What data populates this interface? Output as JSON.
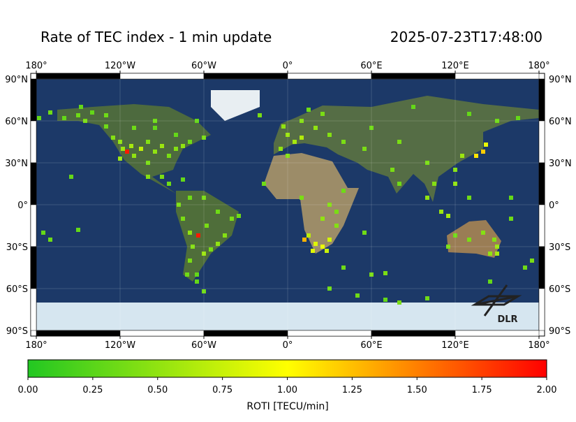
{
  "title": "Rate of TEC index - 1 min update",
  "timestamp": "2025-07-23T17:48:00",
  "logo": "DLR",
  "map": {
    "xlim": [
      -180,
      180
    ],
    "ylim": [
      -90,
      90
    ],
    "xticks": [
      {
        "value": -180,
        "label": "180°"
      },
      {
        "value": -120,
        "label": "120°W"
      },
      {
        "value": -60,
        "label": "60°W"
      },
      {
        "value": 0,
        "label": "0°"
      },
      {
        "value": 60,
        "label": "60°E"
      },
      {
        "value": 120,
        "label": "120°E"
      },
      {
        "value": 180,
        "label": "180°"
      }
    ],
    "yticks": [
      {
        "value": 90,
        "label": "90°N"
      },
      {
        "value": 60,
        "label": "60°N"
      },
      {
        "value": 30,
        "label": "30°N"
      },
      {
        "value": 0,
        "label": "0°"
      },
      {
        "value": -30,
        "label": "30°S"
      },
      {
        "value": -60,
        "label": "60°S"
      },
      {
        "value": -90,
        "label": "90°S"
      }
    ]
  },
  "points": {
    "lon": [
      -160,
      -150,
      -145,
      -140,
      -130,
      -125,
      -120,
      -118,
      -115,
      -112,
      -110,
      -105,
      -100,
      -95,
      -90,
      -85,
      -80,
      -75,
      -70,
      -120,
      -100,
      -95,
      -110,
      -80,
      -65,
      -90,
      -100,
      -85,
      -75,
      -155,
      -178,
      -170,
      -60,
      -130,
      -148,
      -95,
      -78,
      -70,
      -60,
      -50,
      -40,
      -45,
      -50,
      -55,
      -60,
      -64,
      -70,
      -68,
      -70,
      -72,
      -65,
      -58,
      -35,
      -75,
      -5,
      0,
      5,
      10,
      -3,
      10,
      20,
      25,
      15,
      -20,
      30,
      0,
      -17,
      10,
      30,
      35,
      25,
      15,
      20,
      25,
      30,
      18,
      28,
      12,
      40,
      55,
      35,
      40,
      55,
      60,
      80,
      75,
      80,
      100,
      105,
      100,
      110,
      115,
      120,
      120,
      125,
      135,
      140,
      142,
      150,
      165,
      90,
      130,
      115,
      120,
      130,
      140,
      145,
      150,
      148,
      150,
      175,
      170,
      160,
      -175,
      -170,
      -150,
      160,
      130,
      60,
      40,
      70,
      50,
      70,
      100,
      80,
      -60,
      -65,
      145,
      30
    ],
    "lat": [
      62,
      64,
      60,
      66,
      56,
      48,
      45,
      40,
      38,
      42,
      35,
      40,
      45,
      38,
      42,
      35,
      40,
      42,
      45,
      33,
      30,
      55,
      55,
      50,
      60,
      20,
      20,
      15,
      18,
      20,
      62,
      66,
      48,
      64,
      70,
      60,
      0,
      5,
      5,
      -5,
      -10,
      -22,
      -28,
      -32,
      -35,
      -22,
      -20,
      -30,
      -40,
      -50,
      -50,
      -15,
      -8,
      -10,
      40,
      50,
      45,
      48,
      56,
      60,
      55,
      65,
      68,
      64,
      50,
      35,
      15,
      5,
      0,
      -5,
      -10,
      -22,
      -28,
      -30,
      -25,
      -33,
      -33,
      -25,
      10,
      -20,
      -15,
      45,
      40,
      55,
      45,
      25,
      15,
      30,
      15,
      5,
      -5,
      -8,
      15,
      25,
      35,
      35,
      38,
      43,
      60,
      62,
      70,
      65,
      -30,
      -22,
      -25,
      -20,
      -35,
      -30,
      -25,
      -35,
      -40,
      -45,
      -10,
      -20,
      -25,
      -18,
      5,
      5,
      -50,
      -45,
      -49,
      -65,
      -68,
      -67,
      -70,
      -62,
      -55,
      -55,
      -60
    ],
    "roti": [
      0.3,
      0.35,
      0.4,
      0.3,
      0.35,
      0.45,
      0.5,
      0.55,
      1.9,
      0.6,
      0.5,
      0.7,
      0.45,
      0.5,
      0.55,
      0.4,
      0.45,
      0.5,
      0.35,
      0.55,
      0.4,
      0.3,
      0.35,
      0.3,
      0.3,
      0.4,
      0.45,
      0.35,
      0.3,
      0.3,
      0.3,
      0.35,
      0.4,
      0.35,
      0.3,
      0.35,
      0.4,
      0.35,
      0.4,
      0.35,
      0.4,
      0.45,
      0.5,
      0.4,
      0.55,
      1.9,
      0.5,
      0.45,
      0.4,
      0.35,
      0.3,
      0.4,
      0.35,
      0.4,
      0.5,
      0.55,
      0.6,
      0.65,
      0.5,
      0.45,
      0.5,
      0.4,
      0.35,
      0.4,
      0.45,
      0.45,
      0.35,
      0.4,
      0.45,
      0.4,
      0.5,
      0.7,
      0.85,
      0.9,
      0.8,
      0.85,
      0.75,
      1.3,
      0.35,
      0.35,
      0.45,
      0.4,
      0.4,
      0.35,
      0.4,
      0.4,
      0.35,
      0.4,
      0.45,
      0.5,
      0.55,
      0.6,
      0.5,
      0.45,
      0.55,
      1.1,
      1.2,
      0.9,
      0.35,
      0.3,
      0.3,
      0.3,
      0.4,
      0.35,
      0.4,
      0.45,
      0.5,
      0.55,
      0.45,
      0.6,
      0.4,
      0.35,
      0.35,
      0.3,
      0.35,
      0.3,
      0.3,
      0.35,
      0.4,
      0.35,
      0.4,
      0.35,
      0.3,
      0.35,
      0.4,
      0.35,
      0.3,
      0.3,
      0.35
    ]
  },
  "colorbar": {
    "label": "ROTI [TECU/min]",
    "lim": [
      0,
      2
    ],
    "colors": [
      "#22c722",
      "#ffff00",
      "#ff0000"
    ],
    "ticks": [
      {
        "value": 0,
        "label": "0.00"
      },
      {
        "value": 0.25,
        "label": "0.25"
      },
      {
        "value": 0.5,
        "label": "0.50"
      },
      {
        "value": 0.75,
        "label": "0.75"
      },
      {
        "value": 1,
        "label": "1.00"
      },
      {
        "value": 1.25,
        "label": "1.25"
      },
      {
        "value": 1.5,
        "label": "1.50"
      },
      {
        "value": 1.75,
        "label": "1.75"
      },
      {
        "value": 2,
        "label": "2.00"
      }
    ]
  }
}
